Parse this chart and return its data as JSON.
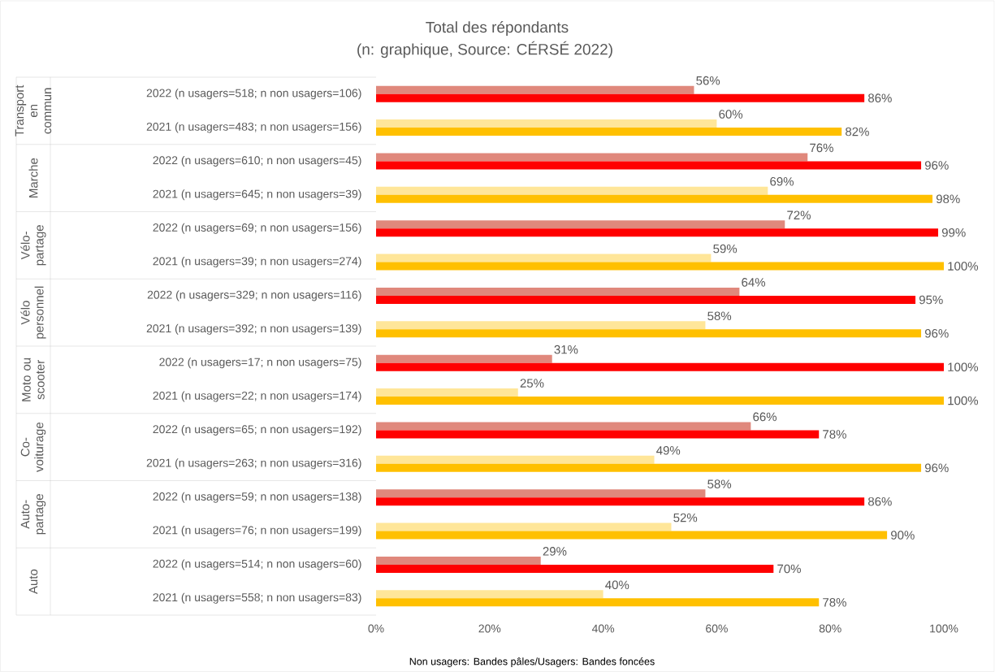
{
  "chart_data": {
    "type": "bar",
    "orientation": "horizontal",
    "title": "Total des répondants",
    "subtitle": "(n: graphique, Source: CÉRSÉ 2022)",
    "categories": [
      "2022 (n usagers=518; n non usagers=106)",
      "2021 (n usagers=483; n non usagers=156)",
      "2022 (n usagers=610; n non usagers=45)",
      "2021 (n usagers=645; n non usagers=39)",
      "2022 (n usagers=69; n non usagers=156)",
      "2021 (n usagers=39; n non usagers=274)",
      "2022 (n usagers=329; n non usagers=116)",
      "2021 (n usagers=392; n non usagers=139)",
      "2022 (n usagers=17; n non usagers=75)",
      "2021 (n usagers=22; n non usagers=174)",
      "2022 (n usagers=65; n non usagers=192)",
      "2021 (n usagers=263; n non usagers=316)",
      "2022 (n usagers=59; n non usagers=138)",
      "2021 (n usagers=76; n non usagers=199)",
      "2022 (n usagers=514; n non usagers=60)",
      "2021 (n usagers=558; n non usagers=83)"
    ],
    "series": [
      {
        "values": [
          56,
          60,
          76,
          69,
          72,
          59,
          64,
          58,
          31,
          25,
          66,
          49,
          58,
          52,
          29,
          40
        ],
        "colors": [
          "#e0887c",
          "#ffe699",
          "#e0887c",
          "#ffe699",
          "#e0887c",
          "#ffe699",
          "#e0887c",
          "#ffe699",
          "#e0887c",
          "#ffe699",
          "#e0887c",
          "#ffe699",
          "#e0887c",
          "#ffe699",
          "#e0887c",
          "#ffe699"
        ],
        "value_labels": [
          "56%",
          "60%",
          "76%",
          "69%",
          "72%",
          "59%",
          "64%",
          "58%",
          "31%",
          "25%",
          "66%",
          "49%",
          "58%",
          "52%",
          "29%",
          "40%"
        ]
      },
      {
        "values": [
          86,
          82,
          96,
          98,
          99,
          100,
          95,
          96,
          100,
          100,
          78,
          96,
          86,
          90,
          70,
          78
        ],
        "colors": [
          "#ff0000",
          "#ffc000",
          "#ff0000",
          "#ffc000",
          "#ff0000",
          "#ffc000",
          "#ff0000",
          "#ffc000",
          "#ff0000",
          "#ffc000",
          "#ff0000",
          "#ffc000",
          "#ff0000",
          "#ffc000",
          "#ff0000",
          "#ffc000"
        ],
        "value_labels": [
          "86%",
          "82%",
          "96%",
          "98%",
          "99%",
          "100%",
          "95%",
          "96%",
          "100%",
          "100%",
          "78%",
          "96%",
          "86%",
          "90%",
          "70%",
          "78%"
        ]
      }
    ],
    "xlim": [
      0,
      100
    ],
    "xticks": [
      {
        "value": 0,
        "label": "0%"
      },
      {
        "value": 20,
        "label": "20%"
      },
      {
        "value": 40,
        "label": "40%"
      },
      {
        "value": 60,
        "label": "60%"
      },
      {
        "value": 80,
        "label": "80%"
      },
      {
        "value": 100,
        "label": "100%"
      }
    ],
    "annotations": [
      "Transport en commun",
      "Marche",
      "Vélo-partage",
      "Vélo personnel",
      "Moto ou scooter",
      "Co-voiturage",
      "Auto-partage",
      "Auto",
      "Non usagers: Bandes pâles/Usagers: Bandes foncées"
    ]
  }
}
